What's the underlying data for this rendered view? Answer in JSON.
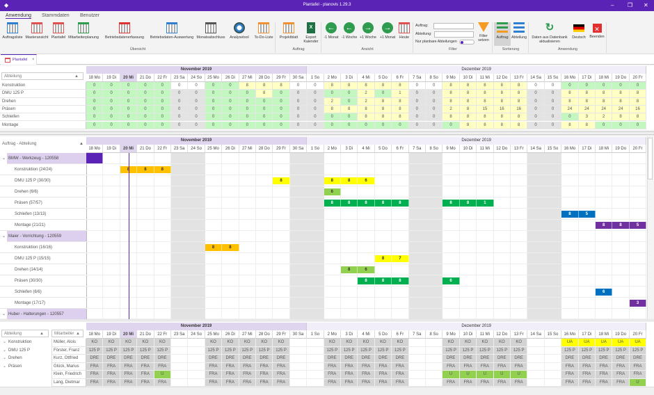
{
  "window": {
    "title": "Plantafel - planovis 1.29.3",
    "minimize": "–",
    "restore": "❐",
    "close": "✕"
  },
  "menu_tabs": [
    {
      "label": "Anwendung",
      "active": true
    },
    {
      "label": "Stammdaten"
    },
    {
      "label": "Benutzer"
    }
  ],
  "ribbon": {
    "buttons": [
      {
        "label": "Auftragsliste",
        "icon": "list-grid-icon",
        "x": 2,
        "w": 32,
        "color": "#2f7fd1"
      },
      {
        "label": "Masteransicht",
        "icon": "master-grid-icon",
        "x": 36,
        "w": 34,
        "color": "#e05050"
      },
      {
        "label": "Plantafel",
        "icon": "calendar-icon",
        "x": 72,
        "w": 24,
        "color": "#e05050"
      },
      {
        "label": "Mitarbeiterplanung",
        "icon": "employee-calendar-icon",
        "x": 97,
        "w": 46,
        "color": "#2e9b4e"
      },
      {
        "label": "Betriebsdatenerfassung",
        "icon": "time-tracking-icon",
        "x": 150,
        "w": 58,
        "color": "#e03030"
      },
      {
        "label": "Betriebsdaten-Auswertung",
        "icon": "report-clock-icon",
        "x": 214,
        "w": 66,
        "color": "#2f7fd1"
      },
      {
        "label": "Monatsabschluss",
        "icon": "monthly-chart-icon",
        "x": 282,
        "w": 42,
        "color": "#555"
      },
      {
        "label": "Analysetool",
        "icon": "gauge-icon",
        "x": 329,
        "w": 30,
        "color": "#2f7fd1"
      },
      {
        "label": "To-Do-Liste",
        "icon": "clipboard-check-icon",
        "x": 364,
        "w": 30,
        "color": "#f09030"
      },
      {
        "label": "Projektblatt",
        "icon": "clipboard-icon",
        "x": 400,
        "w": 30,
        "color": "#f09030"
      },
      {
        "label": "Export Kalender",
        "icon": "excel-icon",
        "x": 434,
        "w": 26,
        "color": "#1e7145"
      },
      {
        "label": "-1 Monat",
        "icon": "arrow-left-icon",
        "x": 464,
        "w": 24,
        "color": "#2e9b4e"
      },
      {
        "label": "-1 Woche",
        "icon": "arrow-left-icon",
        "x": 490,
        "w": 24,
        "color": "#2e9b4e"
      },
      {
        "label": "+1 Woche",
        "icon": "arrow-right-icon",
        "x": 516,
        "w": 26,
        "color": "#2e9b4e"
      },
      {
        "label": "+1 Monat",
        "icon": "arrow-right-icon",
        "x": 544,
        "w": 26,
        "color": "#2e9b4e"
      },
      {
        "label": "Heute",
        "icon": "today-calendar-icon",
        "x": 571,
        "w": 20,
        "color": "#e05050"
      },
      {
        "label": "Filter setzen",
        "icon": "filter-icon",
        "x": 684,
        "w": 22,
        "color": "#f59a23"
      },
      {
        "label": "Auftrag",
        "icon": "sort-order-icon",
        "x": 710,
        "w": 24,
        "color": "#2e9b4e",
        "active": true
      },
      {
        "label": "Abteilung",
        "icon": "sort-department-icon",
        "x": 735,
        "w": 22,
        "color": "#2f7fd1"
      },
      {
        "label": "Daten aus Datenbank aktualisieren",
        "icon": "refresh-icon",
        "x": 762,
        "w": 56,
        "color": "#2e9b4e"
      },
      {
        "label": "Deutsch",
        "icon": "german-flag-icon",
        "x": 820,
        "w": 24,
        "color": "#000"
      },
      {
        "label": "Beenden",
        "icon": "exit-icon",
        "x": 846,
        "w": 24,
        "color": "#e03030"
      }
    ],
    "groups": [
      {
        "label": "Übersicht",
        "x": 0,
        "w": 396
      },
      {
        "label": "Auftrag",
        "x": 396,
        "w": 66
      },
      {
        "label": "Ansicht",
        "x": 462,
        "w": 132
      },
      {
        "label": "Filter",
        "x": 594,
        "w": 114
      },
      {
        "label": "Sortierung",
        "x": 708,
        "w": 52
      },
      {
        "label": "Anwendung",
        "x": 760,
        "w": 112
      }
    ],
    "filter": {
      "auftrag_label": "Auftrag:",
      "auftrag_value": "",
      "abteilung_label": "Abteilung:",
      "abteilung_value": "",
      "planbar_label": "Nur planbare Abteilungen",
      "planbar_on": false
    }
  },
  "doc_tab": {
    "label": "Plantafel",
    "close": "×"
  },
  "months": [
    {
      "label": "November 2019",
      "span": 13
    },
    {
      "label": "Dezember 2019",
      "span": 20
    }
  ],
  "days": [
    "18 Mo",
    "19 Di",
    "20 Mi",
    "21 Do",
    "22 Fr",
    "23 Sa",
    "24 So",
    "25 Mo",
    "26 Di",
    "27 Mi",
    "28 Do",
    "29 Fr",
    "30 Sa",
    "1 So",
    "2 Mo",
    "3 Di",
    "4 Mi",
    "5 Do",
    "6 Fr",
    "7 Sa",
    "8 So",
    "9 Mo",
    "10 Di",
    "11 Mi",
    "12 Do",
    "13 Fr",
    "14 Sa",
    "15 So",
    "16 Mo",
    "17 Di",
    "18 Mi",
    "19 Do",
    "20 Fr"
  ],
  "today": "20 Mi",
  "colors": {
    "free": "#c2f7c0",
    "load": "#ffffc4",
    "weekend": "#e3e3e3",
    "accent": "#5b23b5"
  },
  "capacity": {
    "sort_label": "Abteilung",
    "rows": [
      {
        "label": "Konstruktion",
        "weekend_white": true,
        "values": [
          0,
          0,
          0,
          0,
          0,
          0,
          0,
          0,
          0,
          8,
          8,
          8,
          0,
          0,
          8,
          8,
          8,
          8,
          8,
          0,
          0,
          8,
          8,
          8,
          8,
          8,
          0,
          0,
          0,
          0,
          0,
          0,
          0
        ]
      },
      {
        "label": "DMU 125 P",
        "values": [
          0,
          0,
          0,
          0,
          0,
          0,
          0,
          0,
          0,
          0,
          8,
          0,
          0,
          0,
          0,
          0,
          2,
          0,
          1,
          0,
          0,
          8,
          8,
          8,
          8,
          8,
          0,
          0,
          8,
          8,
          8,
          8,
          8
        ]
      },
      {
        "label": "Drehen",
        "values": [
          0,
          0,
          0,
          0,
          0,
          0,
          0,
          0,
          0,
          0,
          0,
          0,
          0,
          0,
          2,
          0,
          2,
          8,
          8,
          0,
          0,
          8,
          8,
          8,
          8,
          8,
          0,
          0,
          8,
          8,
          8,
          8,
          8
        ]
      },
      {
        "label": "Präsen",
        "values": [
          0,
          0,
          0,
          0,
          0,
          0,
          0,
          0,
          0,
          0,
          0,
          0,
          0,
          0,
          8,
          8,
          8,
          8,
          8,
          0,
          0,
          2,
          8,
          15,
          16,
          16,
          0,
          0,
          24,
          24,
          24,
          24,
          16
        ]
      },
      {
        "label": "Schleifen",
        "values": [
          0,
          0,
          0,
          0,
          0,
          0,
          0,
          0,
          0,
          0,
          0,
          0,
          0,
          0,
          0,
          0,
          8,
          8,
          8,
          0,
          0,
          8,
          8,
          8,
          8,
          8,
          0,
          0,
          0,
          3,
          2,
          8,
          8
        ]
      },
      {
        "label": "Montage",
        "values": [
          0,
          0,
          0,
          0,
          0,
          0,
          0,
          0,
          0,
          0,
          0,
          0,
          0,
          0,
          0,
          0,
          0,
          0,
          0,
          0,
          0,
          0,
          8,
          8,
          8,
          8,
          0,
          0,
          8,
          8,
          0,
          0,
          0
        ]
      }
    ]
  },
  "gantt": {
    "sort_label": "Auftrag - Abteilung",
    "rows": [
      {
        "label": "BMW - Werkzeug - 120558",
        "group": true,
        "color": "#5b23b5",
        "bars": [
          {
            "day": "18 Mo",
            "value": ""
          }
        ]
      },
      {
        "label": "Konstruktion (24/24)",
        "color": "#ffc000",
        "bars": [
          {
            "day": "20 Mi",
            "value": "8"
          },
          {
            "day": "21 Do",
            "value": "8"
          },
          {
            "day": "22 Fr",
            "value": "8"
          }
        ]
      },
      {
        "label": "DMU 125 P (30/30)",
        "color": "#ffff00",
        "bars": [
          {
            "day": "29 Fr",
            "value": "8"
          },
          {
            "day": "2 Mo",
            "value": "8"
          },
          {
            "day": "3 Di",
            "value": "8"
          },
          {
            "day": "4 Mi",
            "value": "6"
          }
        ]
      },
      {
        "label": "Drehen (6/6)",
        "color": "#92d050",
        "bars": [
          {
            "day": "2 Mo",
            "value": "6"
          }
        ]
      },
      {
        "label": "Präsen (57/57)",
        "color": "#00b050",
        "light": true,
        "bars": [
          {
            "day": "2 Mo",
            "value": "8"
          },
          {
            "day": "3 Di",
            "value": "8"
          },
          {
            "day": "4 Mi",
            "value": "8"
          },
          {
            "day": "5 Do",
            "value": "8"
          },
          {
            "day": "6 Fr",
            "value": "8"
          },
          {
            "day": "9 Mo",
            "value": "8"
          },
          {
            "day": "10 Di",
            "value": "8"
          },
          {
            "day": "11 Mi",
            "value": "1"
          }
        ]
      },
      {
        "label": "Schleifen (13/13)",
        "color": "#0070c0",
        "light": true,
        "bars": [
          {
            "day": "16 Mo",
            "value": "8"
          },
          {
            "day": "17 Di",
            "value": "5"
          }
        ]
      },
      {
        "label": "Montage (21/21)",
        "color": "#7030a0",
        "light": true,
        "bars": [
          {
            "day": "18 Mi",
            "value": "8"
          },
          {
            "day": "19 Do",
            "value": "8"
          },
          {
            "day": "20 Fr",
            "value": "5"
          }
        ]
      },
      {
        "label": "Maier  - Vorrichtung - 120559",
        "group": true,
        "bars": []
      },
      {
        "label": "Konstruktion (16/16)",
        "color": "#ffc000",
        "bars": [
          {
            "day": "25 Mo",
            "value": "8"
          },
          {
            "day": "26 Di",
            "value": "8"
          }
        ]
      },
      {
        "label": "DMU 125 P (15/15)",
        "color": "#ffff00",
        "bars": [
          {
            "day": "5 Do",
            "value": "8"
          },
          {
            "day": "6 Fr",
            "value": "7"
          }
        ]
      },
      {
        "label": "Drehen (14/14)",
        "color": "#92d050",
        "bars": [
          {
            "day": "3 Di",
            "value": "8"
          },
          {
            "day": "4 Mi",
            "value": "6"
          }
        ]
      },
      {
        "label": "Präsen (30/30)",
        "color": "#00b050",
        "light": true,
        "bars": [
          {
            "day": "4 Mi",
            "value": "8"
          },
          {
            "day": "5 Do",
            "value": "8"
          },
          {
            "day": "6 Fr",
            "value": "8"
          },
          {
            "day": "9 Mo",
            "value": "6"
          }
        ]
      },
      {
        "label": "Schleifen (6/6)",
        "color": "#0070c0",
        "light": true,
        "bars": [
          {
            "day": "18 Mi",
            "value": "6"
          }
        ]
      },
      {
        "label": "Montage (17/17)",
        "color": "#7030a0",
        "light": true,
        "bars": [
          {
            "day": "20 Fr",
            "value": "3"
          }
        ]
      },
      {
        "label": "Huber - Halterungen - 120557",
        "group": true,
        "bars": []
      }
    ]
  },
  "staff": {
    "dept_sort_label": "Abteilung",
    "emp_sort_label": "Mitarbeiter",
    "colors": {
      "work": "#d3d3d3",
      "vacation": "#92d050",
      "vacation_request": "#ffff00"
    },
    "rows": [
      {
        "dept": "Konstruktion",
        "employee": "Müller, Alois",
        "code": "KO",
        "special": {
          "16 Mo": "UA",
          "17 Di": "UA",
          "18 Mi": "UA",
          "19 Do": "UA",
          "20 Fr": "UA"
        }
      },
      {
        "dept": "DMU 125 P",
        "employee": "Förster, Franz",
        "code": "125 P",
        "special": {}
      },
      {
        "dept": "Drehen",
        "employee": "Kurz, Ottfried",
        "code": "DRE",
        "special": {}
      },
      {
        "dept": "Präsen",
        "employee": "Glück, Marius",
        "code": "FRA",
        "special": {}
      },
      {
        "dept": "",
        "employee": "Klein, Friedrich",
        "code": "FRA",
        "special": {
          "22 Fr": "U",
          "9 Mo": "U",
          "10 Di": "U",
          "11 Mi": "U",
          "12 Do": "U",
          "13 Fr": "U"
        }
      },
      {
        "dept": "",
        "employee": "Lang, Dietmar",
        "code": "FRA",
        "special": {
          "20 Fr": "U"
        }
      }
    ]
  }
}
